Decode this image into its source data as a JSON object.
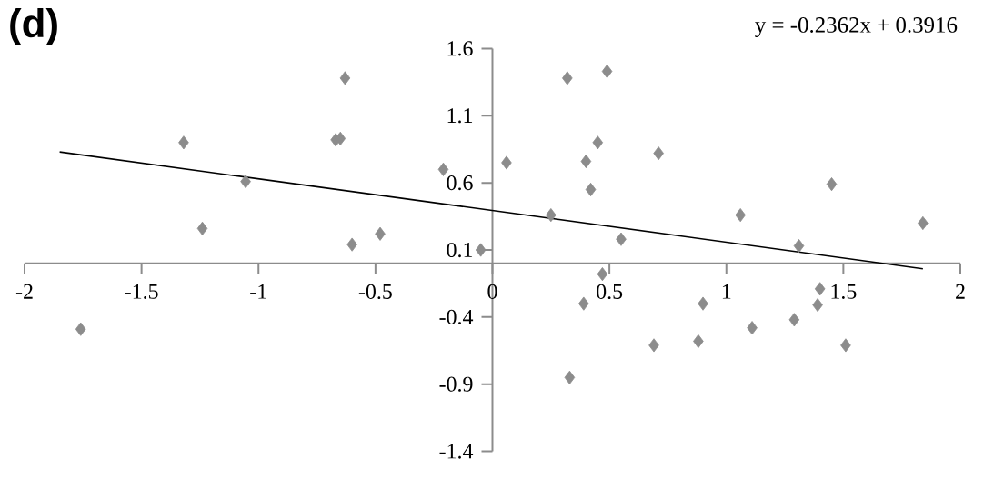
{
  "chart_data": {
    "type": "scatter",
    "title": "(d)",
    "annotations": [
      "y = -0.2362x + 0.3916"
    ],
    "xlim": [
      -2,
      2
    ],
    "xticks": [
      -2,
      -1.5,
      -1,
      -0.5,
      0,
      0.5,
      1,
      1.5,
      2
    ],
    "ylim": [
      -1.4,
      1.6
    ],
    "yticks": [
      1.6,
      1.1,
      0.6,
      0.1,
      -0.4,
      -0.9,
      -1.4
    ],
    "grid": false,
    "series": [
      {
        "marker": "diamond",
        "color": "#8c8c8c",
        "x": [
          -1.76,
          -1.32,
          -1.24,
          -1.055,
          -0.67,
          -0.65,
          -0.63,
          -0.6,
          -0.48,
          -0.21,
          -0.05,
          0.06,
          0.25,
          0.32,
          0.33,
          0.39,
          0.4,
          0.42,
          0.45,
          0.47,
          0.49,
          0.55,
          0.69,
          0.71,
          0.88,
          0.9,
          1.06,
          1.11,
          1.29,
          1.31,
          1.39,
          1.4,
          1.45,
          1.51,
          1.84
        ],
        "values": [
          -0.49,
          0.9,
          0.26,
          0.61,
          0.92,
          0.93,
          1.38,
          0.14,
          0.22,
          0.7,
          0.1,
          0.75,
          0.36,
          1.38,
          -0.85,
          -0.3,
          0.76,
          0.55,
          0.9,
          -0.08,
          1.43,
          0.18,
          -0.61,
          0.82,
          -0.58,
          -0.3,
          0.36,
          -0.48,
          -0.42,
          0.13,
          -0.31,
          -0.19,
          0.59,
          -0.61,
          0.3
        ]
      },
      {
        "type": "line",
        "marker": "none",
        "color": "#000000",
        "x": [
          -1.85,
          1.84
        ],
        "values": [
          0.83,
          -0.04
        ]
      }
    ]
  }
}
